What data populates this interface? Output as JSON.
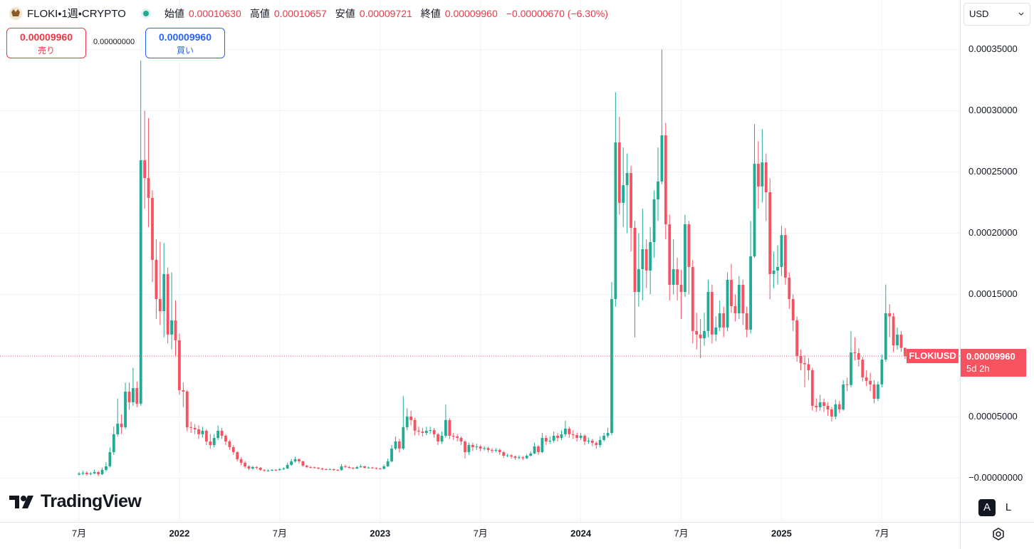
{
  "legend": {
    "symbol": "FLOKI・1週・CRYPTO",
    "open_label": "始値",
    "open": "0.00010630",
    "high_label": "高値",
    "high": "0.00010657",
    "low_label": "安値",
    "low": "0.00009721",
    "close_label": "終値",
    "close": "0.00009960",
    "change": "−0.00000670 (−6.30%)"
  },
  "trade": {
    "sell_price": "0.00009960",
    "sell_label": "売り",
    "spread": "0.00000000",
    "buy_price": "0.00009960",
    "buy_label": "買い"
  },
  "currency": "USD",
  "price_tag": {
    "symbol": "FLOKIUSD",
    "price": "0.00009960",
    "countdown": "5d 2h"
  },
  "buttons": {
    "auto": "A",
    "log": "L"
  },
  "brand": "TradingView",
  "chart_data": {
    "type": "candlestick",
    "up_color": "#22ab94",
    "down_color": "#f7525f",
    "grid": true,
    "ylim": [
      -3.58e-05,
      0.0003904
    ],
    "yticks": [
      {
        "value": 0.00035,
        "label": "0.00035000"
      },
      {
        "value": 0.0003,
        "label": "0.00030000"
      },
      {
        "value": 0.00025,
        "label": "0.00025000"
      },
      {
        "value": 0.0002,
        "label": "0.00020000"
      },
      {
        "value": 0.00015,
        "label": "0.00015000"
      },
      {
        "value": 5e-05,
        "label": "0.00005000"
      },
      {
        "value": 0,
        "label": "−0.00000000"
      }
    ],
    "categories": [
      "7月",
      null,
      null,
      null,
      null,
      null,
      null,
      null,
      null,
      null,
      null,
      null,
      null,
      null,
      null,
      null,
      null,
      null,
      null,
      null,
      null,
      null,
      null,
      null,
      null,
      null,
      "2022",
      null,
      null,
      null,
      null,
      null,
      null,
      null,
      null,
      null,
      null,
      null,
      null,
      null,
      null,
      null,
      null,
      null,
      null,
      null,
      null,
      null,
      null,
      null,
      null,
      null,
      "7月",
      null,
      null,
      null,
      null,
      null,
      null,
      null,
      null,
      null,
      null,
      null,
      null,
      null,
      null,
      null,
      null,
      null,
      null,
      null,
      null,
      null,
      null,
      null,
      null,
      null,
      "2023",
      null,
      null,
      null,
      null,
      null,
      null,
      null,
      null,
      null,
      null,
      null,
      null,
      null,
      null,
      null,
      null,
      null,
      null,
      null,
      null,
      null,
      null,
      null,
      null,
      null,
      "7月",
      null,
      null,
      null,
      null,
      null,
      null,
      null,
      null,
      null,
      null,
      null,
      null,
      null,
      null,
      null,
      null,
      null,
      null,
      null,
      null,
      null,
      null,
      null,
      null,
      null,
      "2024",
      null,
      null,
      null,
      null,
      null,
      null,
      null,
      null,
      null,
      null,
      null,
      null,
      null,
      null,
      null,
      null,
      null,
      null,
      null,
      null,
      null,
      null,
      null,
      null,
      null,
      "7月",
      null,
      null,
      null,
      null,
      null,
      null,
      null,
      null,
      null,
      null,
      null,
      null,
      null,
      null,
      null,
      null,
      null,
      null,
      null,
      null,
      null,
      null,
      null,
      null,
      null,
      "2025",
      null,
      null,
      null,
      null,
      null,
      null,
      null,
      null,
      null,
      null,
      null,
      null,
      null,
      null,
      null,
      null,
      null,
      null,
      null,
      null,
      null,
      null,
      null,
      null,
      null,
      "7月",
      null,
      null,
      null,
      null,
      null,
      null
    ],
    "open": [
      3e-06,
      3.8e-06,
      4.4e-06,
      3.2e-06,
      3.8e-06,
      4.9e-06,
      3.2e-06,
      6.7e-06,
      9.6e-06,
      2.12e-05,
      3.58e-05,
      4.45e-05,
      4.16e-05,
      7.06e-05,
      6.19e-05,
      7.35e-05,
      6.08e-05,
      0.0002596,
      0.000245,
      0.0002288,
      0.0001782,
      0.0001462,
      0.0001363,
      0.0001666,
      0.0001172,
      0.0001288,
      0.0001125,
      7.18e-05,
      7.06e-05,
      4.16e-05,
      4.1e-05,
      3.98e-05,
      3.58e-05,
      3.87e-05,
      2.99e-05,
      2.7e-05,
      3.28e-05,
      3.87e-05,
      3.46e-05,
      2.99e-05,
      2.53e-05,
      2.12e-05,
      1.54e-05,
      1.25e-05,
      9.6e-06,
      7.8e-06,
      9e-06,
      8.4e-06,
      6.7e-06,
      6.1e-06,
      6.2e-06,
      6.7e-06,
      6.5e-06,
      7.3e-06,
      7.8e-06,
      1.08e-05,
      1.37e-05,
      1.54e-05,
      1.37e-05,
      1.02e-05,
      9e-06,
      8.8e-06,
      8.4e-06,
      7.8e-06,
      7.3e-06,
      7e-06,
      7.3e-06,
      6.7e-06,
      6.5e-06,
      9.6e-06,
      9e-06,
      8.4e-06,
      7.8e-06,
      9e-06,
      9.6e-06,
      8.4e-06,
      8.6e-06,
      8.2e-06,
      7.8e-06,
      7.6e-06,
      9.6e-06,
      1.37e-05,
      2.41e-05,
      2.99e-05,
      2.41e-05,
      4.16e-05,
      5.03e-05,
      4.74e-05,
      3.87e-05,
      3.8e-05,
      3.69e-05,
      3.87e-05,
      3.92e-05,
      3.58e-05,
      2.99e-05,
      3.46e-05,
      4.74e-05,
      3.46e-05,
      3.4e-05,
      3.28e-05,
      2.99e-05,
      2.12e-05,
      2.7e-05,
      2.53e-05,
      2.58e-05,
      2.41e-05,
      2.45e-05,
      2.3e-05,
      2.24e-05,
      2.3e-05,
      2.12e-05,
      1.83e-05,
      1.86e-05,
      1.77e-05,
      1.66e-05,
      1.7e-05,
      1.62e-05,
      1.83e-05,
      2.01e-05,
      2.59e-05,
      2.12e-05,
      3.28e-05,
      2.99e-05,
      3.05e-05,
      3.46e-05,
      3.28e-05,
      3.58e-05,
      4.04e-05,
      3.58e-05,
      3.52e-05,
      3.28e-05,
      3.46e-05,
      2.99e-05,
      3.05e-05,
      2.88e-05,
      2.7e-05,
      3.11e-05,
      3.46e-05,
      3.69e-05,
      0.0001462,
      0.0002741,
      0.0002247,
      0.0002392,
      0.0002491,
      0.0002044,
      0.000152,
      0.0001706,
      0.0001869,
      0.0001695,
      0.0001927,
      0.0002276,
      0.0002422,
      0.0002799,
      0.0002073,
      0.0001578,
      0.0001706,
      0.0001578,
      0.000152,
      0.0002073,
      0.0001724,
      0.0001201,
      0.0001172,
      0.0001142,
      0.0001201,
      0.000152,
      0.0001172,
      0.000123,
      0.0001346,
      0.000123,
      0.0001619,
      0.0001404,
      0.0001346,
      0.0001578,
      0.0001346,
      0.0001212,
      0.0001811,
      0.0002567,
      0.0002381,
      0.0002578,
      0.0002334,
      0.0001666,
      0.0001695,
      0.0001724,
      0.0001985,
      0.0001637,
      0.0001462,
      0.0001288,
      9.97e-05,
      9.39e-05,
      9.3e-05,
      8.81e-05,
      5.9e-05,
      5.78e-05,
      6.19e-05,
      5.9e-05,
      5.61e-05,
      5.03e-05,
      6.02e-05,
      5.61e-05,
      7.65e-05,
      7.6e-05,
      0.0001026,
      0.000102,
      9.68e-05,
      8.23e-05,
      7.94e-05,
      7.65e-05,
      6.48e-05,
      7.65e-05,
      9.68e-05,
      0.0001346,
      0.000132,
      0.0001084,
      0.0001172,
      0.0001063
    ],
    "high": [
      5e-06,
      6e-06,
      5.5e-06,
      5e-06,
      7e-06,
      6e-06,
      8.5e-06,
      1.3e-05,
      2.5e-05,
      4.2e-05,
      6.5e-05,
      5.2e-05,
      7.8e-05,
      7.8e-05,
      9e-05,
      7.9e-05,
      0.000341,
      0.0003,
      0.000294,
      0.000235,
      0.000195,
      0.000193,
      0.000192,
      0.000172,
      0.000168,
      0.000145,
      0.000118,
      7.8e-05,
      7.2e-05,
      4.6e-05,
      4.4e-05,
      4.3e-05,
      4.2e-05,
      4e-05,
      3.6e-05,
      3.6e-05,
      4.3e-05,
      4.1e-05,
      3.6e-05,
      3.1e-05,
      2.7e-05,
      2.2e-05,
      1.7e-05,
      1.4e-05,
      1.05e-05,
      1e-05,
      9.8e-06,
      9e-06,
      7.2e-06,
      7e-06,
      7.5e-06,
      7.2e-06,
      8.2e-06,
      8.8e-06,
      1.25e-05,
      1.55e-05,
      1.75e-05,
      1.62e-05,
      1.42e-05,
      1.08e-05,
      9.8e-06,
      9.5e-06,
      9e-06,
      8.4e-06,
      8e-06,
      8e-06,
      7.8e-06,
      7.2e-06,
      1.15e-05,
      1.1e-05,
      9.8e-06,
      9e-06,
      1e-05,
      1.1e-05,
      1.02e-05,
      9.5e-06,
      9.2e-06,
      8.8e-06,
      8.5e-06,
      1.1e-05,
      1.6e-05,
      2.7e-05,
      3.4e-05,
      3.2e-05,
      6.7e-05,
      5.7e-05,
      5.5e-05,
      4.9e-05,
      4.2e-05,
      4.1e-05,
      4.2e-05,
      4.2e-05,
      4.1e-05,
      3.7e-05,
      3.8e-05,
      6e-05,
      4.9e-05,
      3.7e-05,
      3.6e-05,
      3.4e-05,
      3.1e-05,
      2.9e-05,
      2.9e-05,
      2.8e-05,
      2.7e-05,
      2.6e-05,
      2.55e-05,
      2.45e-05,
      2.45e-05,
      2.4e-05,
      2.2e-05,
      2e-05,
      1.95e-05,
      1.85e-05,
      1.85e-05,
      1.8e-05,
      1.95e-05,
      2.2e-05,
      2.9e-05,
      2.7e-05,
      3.7e-05,
      3.5e-05,
      3.4e-05,
      3.8e-05,
      3.7e-05,
      3.9e-05,
      4.7e-05,
      4.2e-05,
      3.9e-05,
      3.7e-05,
      3.7e-05,
      3.6e-05,
      3.3e-05,
      3.2e-05,
      3e-05,
      3.4e-05,
      3.7e-05,
      4.1e-05,
      0.00016,
      0.000315,
      0.000295,
      0.00027,
      0.000265,
      0.000255,
      0.00021,
      0.0002,
      0.00022,
      0.000195,
      0.000205,
      0.000235,
      0.00027,
      0.00035,
      0.00029,
      0.000215,
      0.000195,
      0.00018,
      0.00017,
      0.000215,
      0.00021,
      0.000178,
      0.000135,
      0.00013,
      0.000135,
      0.000162,
      0.000158,
      0.000132,
      0.000145,
      0.00014,
      0.000168,
      0.000175,
      0.00015,
      0.000165,
      0.000162,
      0.00014,
      0.00021,
      0.000289,
      0.000275,
      0.000285,
      0.000265,
      0.000245,
      0.000185,
      0.00019,
      0.000206,
      0.000204,
      0.000168,
      0.00015,
      0.000132,
      0.000105,
      0.0001,
      9.8e-05,
      9e-05,
      6.5e-05,
      6.8e-05,
      6.5e-05,
      6.2e-05,
      5.8e-05,
      6.4e-05,
      6.3e-05,
      8e-05,
      8.2e-05,
      0.00012,
      0.000115,
      0.000106,
      9.9e-05,
      8.8e-05,
      8.6e-05,
      8e-05,
      7.9e-05,
      0.000101,
      0.000158,
      0.000142,
      0.000135,
      0.000123,
      0.00012,
      0.00010657
    ],
    "low": [
      2e-06,
      2.5e-06,
      2e-06,
      2.2e-06,
      3e-06,
      1.5e-06,
      2.5e-06,
      5.5e-06,
      8.5e-06,
      1.9e-05,
      3.4e-05,
      3.6e-05,
      4e-05,
      5.6e-05,
      5.9e-05,
      5.8e-05,
      5.9e-05,
      0.00022,
      0.000205,
      0.00016,
      0.00013,
      0.000125,
      0.000115,
      0.00011,
      0.000105,
      0.0001,
      6.8e-05,
      5.8e-05,
      3.8e-05,
      3.7e-05,
      3.6e-05,
      3.2e-05,
      3.3e-05,
      2.7e-05,
      2.4e-05,
      2.5e-05,
      3.1e-05,
      3.2e-05,
      2.7e-05,
      2.3e-05,
      1.9e-05,
      1.35e-05,
      1.05e-05,
      8e-06,
      6.5e-06,
      6.8e-06,
      7.2e-06,
      5.8e-06,
      5.2e-06,
      5.4e-06,
      5.6e-06,
      5.8e-06,
      6e-06,
      6.6e-06,
      7.4e-06,
      1e-05,
      1.28e-05,
      1.2e-05,
      9.2e-06,
      8.2e-06,
      8e-06,
      7.7e-06,
      7e-06,
      6.6e-06,
      6.4e-06,
      6.5e-06,
      6e-06,
      5.8e-06,
      6.2e-06,
      8.2e-06,
      7.6e-06,
      7e-06,
      7.4e-06,
      8.4e-06,
      7.8e-06,
      7.8e-06,
      7.6e-06,
      7.2e-06,
      7e-06,
      7.2e-06,
      9.2e-06,
      1.3e-05,
      2.3e-05,
      2.1e-05,
      2.3e-05,
      3.9e-05,
      4.3e-05,
      3.5e-05,
      3.5e-05,
      3.4e-05,
      3.5e-05,
      3.6e-05,
      3.3e-05,
      2.7e-05,
      2.8e-05,
      3.3e-05,
      3.2e-05,
      3.1e-05,
      3e-05,
      2.7e-05,
      1.6e-05,
      1.9e-05,
      2.2e-05,
      2.3e-05,
      2.2e-05,
      2.25e-05,
      2.1e-05,
      2.05e-05,
      2.1e-05,
      1.9e-05,
      1.65e-05,
      1.7e-05,
      1.6e-05,
      1.5e-05,
      1.55e-05,
      1.48e-05,
      1.55e-05,
      1.75e-05,
      1.95e-05,
      1.9e-05,
      2.05e-05,
      2.7e-05,
      2.8e-05,
      2.9e-05,
      3e-05,
      3.1e-05,
      3.4e-05,
      3.3e-05,
      3.2e-05,
      3e-05,
      3.1e-05,
      2.7e-05,
      2.8e-05,
      2.6e-05,
      2.4e-05,
      2.5e-05,
      3e-05,
      3.3e-05,
      3.5e-05,
      0.00014,
      0.000215,
      0.000205,
      0.0002,
      0.000185,
      0.000115,
      0.00014,
      0.000145,
      0.000155,
      0.00015,
      0.00018,
      0.00021,
      0.00024,
      0.000195,
      0.000145,
      0.00015,
      0.000145,
      0.00013,
      0.000148,
      0.00015,
      0.00011,
      0.000105,
      9.8e-05,
      0.000108,
      0.000115,
      0.00011,
      0.000112,
      0.00012,
      0.000115,
      0.00012,
      0.000135,
      0.000128,
      0.00013,
      0.000125,
      0.000115,
      0.000118,
      0.00018,
      0.00022,
      0.000225,
      0.00021,
      0.000146,
      0.000155,
      0.000158,
      0.000165,
      0.000158,
      0.000138,
      0.00012,
      9.5e-05,
      8.8e-05,
      7.4e-05,
      8e-05,
      5.5e-05,
      5.4e-05,
      5.5e-05,
      5.4e-05,
      5.1e-05,
      4.6e-05,
      4.8e-05,
      5.3e-05,
      5.5e-05,
      7.1e-05,
      7.4e-05,
      9.6e-05,
      9.1e-05,
      7.9e-05,
      7.5e-05,
      7.1e-05,
      6.1e-05,
      6.3e-05,
      7.4e-05,
      9.5e-05,
      0.000115,
      0.000103,
      0.000105,
      0.000103,
      9.721e-05
    ],
    "close": [
      3.8e-06,
      4.4e-06,
      3.2e-06,
      3.8e-06,
      4.9e-06,
      3.2e-06,
      6.7e-06,
      9.6e-06,
      2.12e-05,
      3.58e-05,
      4.45e-05,
      4.16e-05,
      7.06e-05,
      6.19e-05,
      7.35e-05,
      6.08e-05,
      0.0002596,
      0.000245,
      0.0002288,
      0.0001782,
      0.0001462,
      0.0001363,
      0.0001666,
      0.0001172,
      0.0001288,
      0.0001125,
      7.18e-05,
      7.06e-05,
      4.16e-05,
      4.1e-05,
      3.98e-05,
      3.58e-05,
      3.87e-05,
      2.99e-05,
      2.7e-05,
      3.28e-05,
      3.87e-05,
      3.46e-05,
      2.99e-05,
      2.53e-05,
      2.12e-05,
      1.54e-05,
      1.25e-05,
      9.6e-06,
      7.8e-06,
      9e-06,
      8.4e-06,
      6.7e-06,
      6.1e-06,
      6.2e-06,
      6.7e-06,
      6.5e-06,
      7.3e-06,
      7.8e-06,
      1.08e-05,
      1.37e-05,
      1.54e-05,
      1.37e-05,
      1.02e-05,
      9e-06,
      8.8e-06,
      8.4e-06,
      7.8e-06,
      7.3e-06,
      7e-06,
      7.3e-06,
      6.7e-06,
      6.5e-06,
      9.6e-06,
      9e-06,
      8.4e-06,
      7.8e-06,
      9e-06,
      9.6e-06,
      8.4e-06,
      8.6e-06,
      8.2e-06,
      7.8e-06,
      7.6e-06,
      9.6e-06,
      1.37e-05,
      2.41e-05,
      2.99e-05,
      2.41e-05,
      4.16e-05,
      5.03e-05,
      4.74e-05,
      3.87e-05,
      3.8e-05,
      3.69e-05,
      3.87e-05,
      3.92e-05,
      3.58e-05,
      2.99e-05,
      3.46e-05,
      4.74e-05,
      3.46e-05,
      3.4e-05,
      3.28e-05,
      2.99e-05,
      2.12e-05,
      2.7e-05,
      2.53e-05,
      2.58e-05,
      2.41e-05,
      2.45e-05,
      2.3e-05,
      2.24e-05,
      2.3e-05,
      2.12e-05,
      1.83e-05,
      1.86e-05,
      1.77e-05,
      1.66e-05,
      1.7e-05,
      1.62e-05,
      1.83e-05,
      2.01e-05,
      2.59e-05,
      2.12e-05,
      3.28e-05,
      2.99e-05,
      3.05e-05,
      3.46e-05,
      3.28e-05,
      3.58e-05,
      4.04e-05,
      3.58e-05,
      3.52e-05,
      3.28e-05,
      3.46e-05,
      2.99e-05,
      3.05e-05,
      2.88e-05,
      2.7e-05,
      3.11e-05,
      3.46e-05,
      3.69e-05,
      0.0001462,
      0.0002741,
      0.0002247,
      0.0002392,
      0.0002491,
      0.0002044,
      0.000152,
      0.0001706,
      0.0001869,
      0.0001695,
      0.0001927,
      0.0002276,
      0.0002422,
      0.0002799,
      0.0002073,
      0.0001578,
      0.0001706,
      0.0001578,
      0.000152,
      0.0002073,
      0.0001724,
      0.0001201,
      0.0001172,
      0.0001142,
      0.0001201,
      0.000152,
      0.0001172,
      0.000123,
      0.0001346,
      0.000123,
      0.0001619,
      0.0001404,
      0.0001346,
      0.0001578,
      0.0001346,
      0.0001212,
      0.0001811,
      0.0002567,
      0.0002381,
      0.0002578,
      0.0002334,
      0.0001666,
      0.0001695,
      0.0001724,
      0.0001985,
      0.0001637,
      0.0001462,
      0.0001288,
      9.97e-05,
      9.39e-05,
      9.3e-05,
      8.81e-05,
      5.9e-05,
      5.78e-05,
      6.19e-05,
      5.9e-05,
      5.61e-05,
      5.03e-05,
      6.02e-05,
      5.61e-05,
      7.65e-05,
      7.6e-05,
      0.0001026,
      0.000102,
      9.68e-05,
      8.23e-05,
      7.94e-05,
      7.65e-05,
      6.48e-05,
      7.65e-05,
      9.68e-05,
      0.0001346,
      0.000132,
      0.0001084,
      0.0001172,
      0.0001063,
      9.96e-05
    ]
  }
}
